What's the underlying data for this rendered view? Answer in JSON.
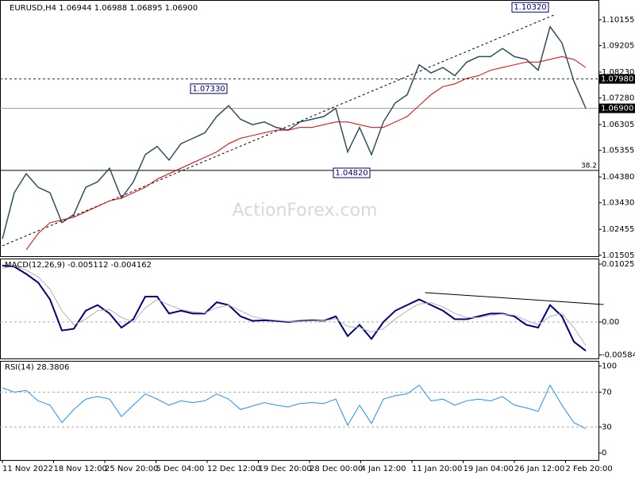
{
  "chart_data": {
    "type": "line",
    "title": "EURUSD,H4 1.06944 1.06988 1.06895 1.06900",
    "watermark": "ActionForex.com",
    "xlabels": [
      "11 Nov 2022",
      "18 Nov 12:00",
      "25 Nov 20:00",
      "5 Dec 04:00",
      "12 Dec 12:00",
      "19 Dec 20:00",
      "28 Dec 00:00",
      "4 Jan 12:00",
      "11 Jan 20:00",
      "19 Jan 04:00",
      "26 Jan 12:00",
      "2 Feb 20:00"
    ],
    "price": {
      "ylim": [
        1.0147,
        1.1088
      ],
      "yticks": [
        {
          "value": 1.10155,
          "label": "1.10155"
        },
        {
          "value": 1.09205,
          "label": "1.09205"
        },
        {
          "value": 1.0823,
          "label": "1.08230"
        },
        {
          "value": 1.0728,
          "label": "1.07280"
        },
        {
          "value": 1.06305,
          "label": "1.06305"
        },
        {
          "value": 1.05355,
          "label": "1.05355"
        },
        {
          "value": 1.0438,
          "label": "1.04380"
        },
        {
          "value": 1.0343,
          "label": "1.03430"
        },
        {
          "value": 1.02455,
          "label": "1.02455"
        },
        {
          "value": 1.01505,
          "label": "1.01505"
        }
      ],
      "series": [
        {
          "name": "Close",
          "color": "#2f4f5f",
          "values": [
            1.021,
            1.038,
            1.045,
            1.04,
            1.038,
            1.027,
            1.03,
            1.04,
            1.042,
            1.047,
            1.036,
            1.042,
            1.052,
            1.055,
            1.05,
            1.056,
            1.058,
            1.06,
            1.066,
            1.07,
            1.065,
            1.063,
            1.064,
            1.062,
            1.061,
            1.064,
            1.065,
            1.066,
            1.069,
            1.053,
            1.062,
            1.052,
            1.064,
            1.071,
            1.074,
            1.085,
            1.082,
            1.084,
            1.081,
            1.086,
            1.088,
            1.088,
            1.091,
            1.088,
            1.087,
            1.083,
            1.099,
            1.093,
            1.079,
            1.069
          ]
        },
        {
          "name": "MA",
          "color": "#e00000",
          "values": [
            null,
            null,
            1.017,
            1.023,
            1.027,
            1.028,
            1.029,
            1.031,
            1.033,
            1.035,
            1.036,
            1.038,
            1.04,
            1.043,
            1.045,
            1.047,
            1.049,
            1.051,
            1.053,
            1.056,
            1.058,
            1.059,
            1.06,
            1.061,
            1.061,
            1.062,
            1.062,
            1.063,
            1.064,
            1.064,
            1.063,
            1.062,
            1.062,
            1.064,
            1.066,
            1.07,
            1.074,
            1.077,
            1.078,
            1.08,
            1.081,
            1.083,
            1.084,
            1.085,
            1.086,
            1.086,
            1.087,
            1.088,
            1.087,
            1.084
          ]
        }
      ],
      "levels": [
        {
          "value": 1.0798,
          "label": "1.07980"
        },
        {
          "value": 1.069,
          "label": "1.06900"
        }
      ],
      "fib": {
        "price": 1.0462,
        "ratio": 38.2
      },
      "trendline": {
        "x": [
          0,
          46.5
        ],
        "y": [
          1.0185,
          1.1036
        ]
      },
      "annotations": [
        {
          "x": 46,
          "value": 1.1032,
          "label": "1.10320"
        },
        {
          "x": 19,
          "value": 1.0733,
          "label": "1.07330"
        },
        {
          "x": 31,
          "value": 1.0482,
          "label": "1.04820"
        }
      ]
    },
    "macd": {
      "title": "MACD(12,26,9) -0.005112 -0.004162",
      "ylim": [
        -0.00646,
        0.01124
      ],
      "yticks": [
        0.010253,
        {
          "value": 0,
          "label": "0.00"
        },
        -0.005843
      ],
      "series": [
        {
          "name": "MACD",
          "color": "#000080",
          "values": [
            0.01,
            0.0098,
            0.0085,
            0.007,
            0.004,
            -0.0015,
            -0.0012,
            0.002,
            0.003,
            0.0015,
            -0.001,
            0.0005,
            0.0045,
            0.0045,
            0.0015,
            0.002,
            0.0015,
            0.0015,
            0.0035,
            0.003,
            0.001,
            0.0002,
            0.0003,
            0.0002,
            0.0,
            0.0002,
            0.0003,
            0.0002,
            0.001,
            -0.0025,
            -0.0005,
            -0.003,
            0.0,
            0.002,
            0.003,
            0.004,
            0.003,
            0.002,
            0.0005,
            0.0005,
            0.001,
            0.0015,
            0.0015,
            0.001,
            -0.0005,
            -0.001,
            0.003,
            0.001,
            -0.0035,
            -0.0051
          ]
        },
        {
          "name": "Signal",
          "color": "#b0b0b0",
          "values": [
            0.0095,
            0.0099,
            0.0092,
            0.008,
            0.0058,
            0.002,
            -0.0005,
            0.0005,
            0.002,
            0.0022,
            0.0008,
            0.0,
            0.0025,
            0.004,
            0.003,
            0.0022,
            0.0018,
            0.0016,
            0.0025,
            0.003,
            0.002,
            0.001,
            0.0005,
            0.0003,
            0.0001,
            0.0001,
            0.0002,
            0.0002,
            0.0006,
            -0.0008,
            -0.001,
            -0.0018,
            -0.0012,
            0.0005,
            0.002,
            0.0032,
            0.0034,
            0.0027,
            0.0015,
            0.0008,
            0.0008,
            0.0012,
            0.0014,
            0.0012,
            0.0003,
            -0.0005,
            0.001,
            0.0015,
            -0.001,
            -0.0042
          ]
        }
      ],
      "trendline": {
        "x": [
          35.5,
          50.5
        ],
        "y": [
          0.0052,
          0.0031
        ]
      }
    },
    "rsi": {
      "title": "RSI(14) 28.3806",
      "ylim": [
        -8,
        106
      ],
      "yticks": [
        100,
        70,
        30,
        0
      ],
      "levels": [
        70,
        30
      ],
      "series": [
        {
          "name": "RSI",
          "color": "#1e90ff",
          "values": [
            75,
            70,
            72,
            60,
            55,
            35,
            50,
            62,
            65,
            62,
            42,
            55,
            68,
            62,
            55,
            60,
            58,
            60,
            68,
            62,
            50,
            54,
            58,
            55,
            53,
            57,
            58,
            57,
            62,
            32,
            55,
            34,
            62,
            66,
            68,
            78,
            60,
            62,
            55,
            60,
            62,
            60,
            65,
            55,
            52,
            48,
            78,
            55,
            35,
            28
          ]
        }
      ]
    }
  }
}
